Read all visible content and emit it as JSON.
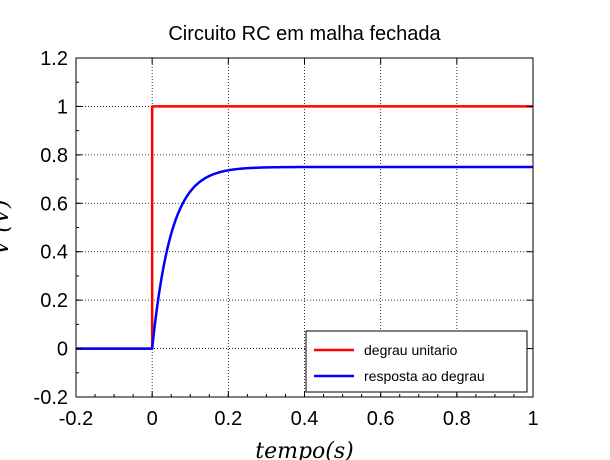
{
  "chart_data": {
    "type": "line",
    "title": "Circuito RC em malha fechada",
    "xlabel": "tempo(s)",
    "ylabel": "V (V)",
    "xlim": [
      -0.2,
      1
    ],
    "ylim": [
      -0.2,
      1.2
    ],
    "xticks": [
      "-0.2",
      "0",
      "0.2",
      "0.4",
      "0.6",
      "0.8",
      "1"
    ],
    "yticks": [
      "-0.2",
      "0",
      "0.2",
      "0.4",
      "0.6",
      "0.8",
      "1",
      "1.2"
    ],
    "grid": true,
    "legend_position": "bottom-right",
    "series": [
      {
        "name": "degrau unitario",
        "color": "#ff0000",
        "x": [
          -0.2,
          0,
          0,
          1
        ],
        "y": [
          0,
          0,
          1,
          1
        ]
      },
      {
        "name": "resposta ao degrau",
        "color": "#0000ff",
        "x": [
          -0.2,
          0,
          0.01,
          0.02,
          0.03,
          0.04,
          0.05,
          0.06,
          0.08,
          0.1,
          0.12,
          0.15,
          0.2,
          0.25,
          0.3,
          0.4,
          0.6,
          0.8,
          1
        ],
        "y": [
          0,
          0,
          0.143,
          0.265,
          0.369,
          0.458,
          0.534,
          0.598,
          0.696,
          0.761,
          0.703,
          0.725,
          0.743,
          0.748,
          0.749,
          0.75,
          0.75,
          0.75,
          0.75
        ]
      }
    ]
  }
}
